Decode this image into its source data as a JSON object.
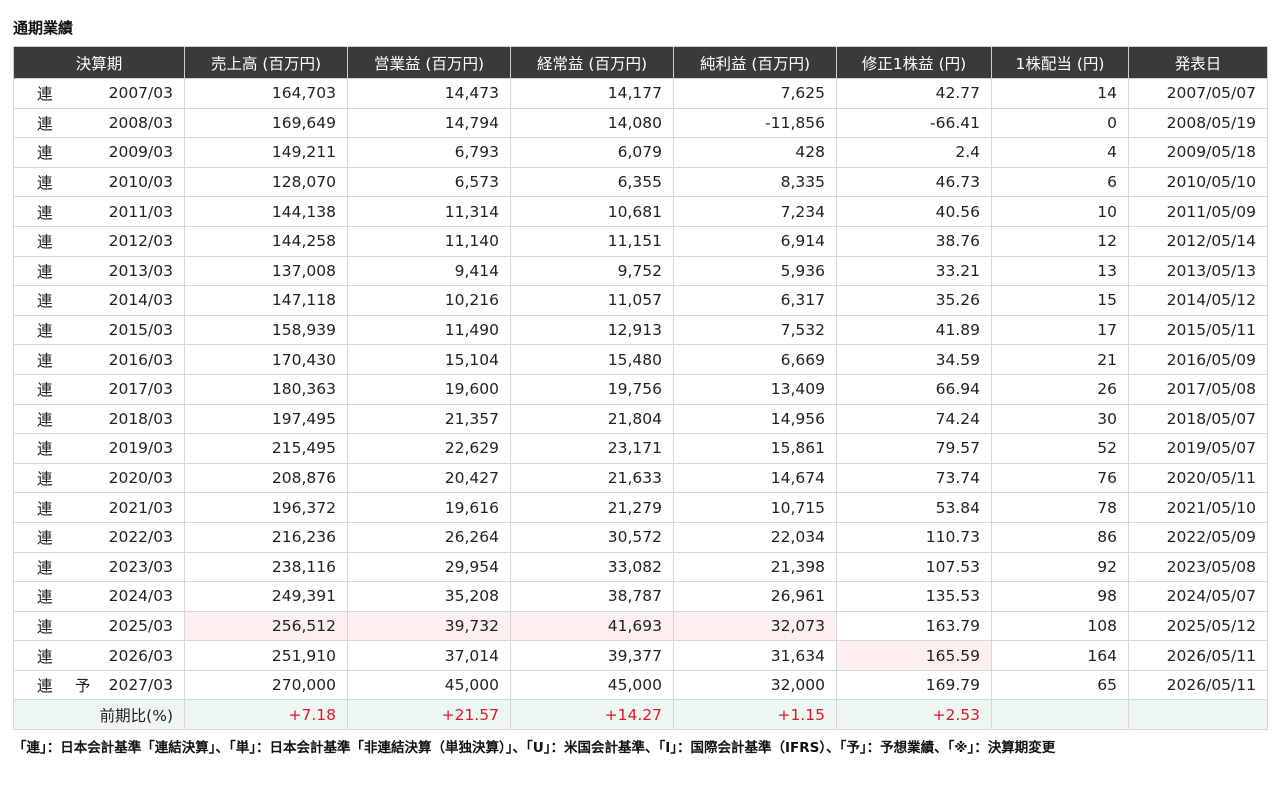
{
  "title": "通期業績",
  "headers": [
    "決算期",
    "売上高 (百万円)",
    "営業益 (百万円)",
    "経常益 (百万円)",
    "純利益 (百万円)",
    "修正1株益 (円)",
    "1株配当 (円)",
    "発表日"
  ],
  "rows": [
    {
      "kind": "連",
      "flag": "",
      "period": "2007/03",
      "sales": "164,703",
      "op": "14,473",
      "ord": "14,177",
      "net": "7,625",
      "eps": "42.77",
      "div": "14",
      "date": "2007/05/07"
    },
    {
      "kind": "連",
      "flag": "",
      "period": "2008/03",
      "sales": "169,649",
      "op": "14,794",
      "ord": "14,080",
      "net": "-11,856",
      "eps": "-66.41",
      "div": "0",
      "date": "2008/05/19"
    },
    {
      "kind": "連",
      "flag": "",
      "period": "2009/03",
      "sales": "149,211",
      "op": "6,793",
      "ord": "6,079",
      "net": "428",
      "eps": "2.4",
      "div": "4",
      "date": "2009/05/18"
    },
    {
      "kind": "連",
      "flag": "",
      "period": "2010/03",
      "sales": "128,070",
      "op": "6,573",
      "ord": "6,355",
      "net": "8,335",
      "eps": "46.73",
      "div": "6",
      "date": "2010/05/10"
    },
    {
      "kind": "連",
      "flag": "",
      "period": "2011/03",
      "sales": "144,138",
      "op": "11,314",
      "ord": "10,681",
      "net": "7,234",
      "eps": "40.56",
      "div": "10",
      "date": "2011/05/09"
    },
    {
      "kind": "連",
      "flag": "",
      "period": "2012/03",
      "sales": "144,258",
      "op": "11,140",
      "ord": "11,151",
      "net": "6,914",
      "eps": "38.76",
      "div": "12",
      "date": "2012/05/14"
    },
    {
      "kind": "連",
      "flag": "",
      "period": "2013/03",
      "sales": "137,008",
      "op": "9,414",
      "ord": "9,752",
      "net": "5,936",
      "eps": "33.21",
      "div": "13",
      "date": "2013/05/13"
    },
    {
      "kind": "連",
      "flag": "",
      "period": "2014/03",
      "sales": "147,118",
      "op": "10,216",
      "ord": "11,057",
      "net": "6,317",
      "eps": "35.26",
      "div": "15",
      "date": "2014/05/12"
    },
    {
      "kind": "連",
      "flag": "",
      "period": "2015/03",
      "sales": "158,939",
      "op": "11,490",
      "ord": "12,913",
      "net": "7,532",
      "eps": "41.89",
      "div": "17",
      "date": "2015/05/11"
    },
    {
      "kind": "連",
      "flag": "",
      "period": "2016/03",
      "sales": "170,430",
      "op": "15,104",
      "ord": "15,480",
      "net": "6,669",
      "eps": "34.59",
      "div": "21",
      "date": "2016/05/09"
    },
    {
      "kind": "連",
      "flag": "",
      "period": "2017/03",
      "sales": "180,363",
      "op": "19,600",
      "ord": "19,756",
      "net": "13,409",
      "eps": "66.94",
      "div": "26",
      "date": "2017/05/08"
    },
    {
      "kind": "連",
      "flag": "",
      "period": "2018/03",
      "sales": "197,495",
      "op": "21,357",
      "ord": "21,804",
      "net": "14,956",
      "eps": "74.24",
      "div": "30",
      "date": "2018/05/07"
    },
    {
      "kind": "連",
      "flag": "",
      "period": "2019/03",
      "sales": "215,495",
      "op": "22,629",
      "ord": "23,171",
      "net": "15,861",
      "eps": "79.57",
      "div": "52",
      "date": "2019/05/07"
    },
    {
      "kind": "連",
      "flag": "",
      "period": "2020/03",
      "sales": "208,876",
      "op": "20,427",
      "ord": "21,633",
      "net": "14,674",
      "eps": "73.74",
      "div": "76",
      "date": "2020/05/11"
    },
    {
      "kind": "連",
      "flag": "",
      "period": "2021/03",
      "sales": "196,372",
      "op": "19,616",
      "ord": "21,279",
      "net": "10,715",
      "eps": "53.84",
      "div": "78",
      "date": "2021/05/10"
    },
    {
      "kind": "連",
      "flag": "",
      "period": "2022/03",
      "sales": "216,236",
      "op": "26,264",
      "ord": "30,572",
      "net": "22,034",
      "eps": "110.73",
      "div": "86",
      "date": "2022/05/09"
    },
    {
      "kind": "連",
      "flag": "",
      "period": "2023/03",
      "sales": "238,116",
      "op": "29,954",
      "ord": "33,082",
      "net": "21,398",
      "eps": "107.53",
      "div": "92",
      "date": "2023/05/08"
    },
    {
      "kind": "連",
      "flag": "",
      "period": "2024/03",
      "sales": "249,391",
      "op": "35,208",
      "ord": "38,787",
      "net": "26,961",
      "eps": "135.53",
      "div": "98",
      "date": "2024/05/07"
    },
    {
      "kind": "連",
      "flag": "",
      "period": "2025/03",
      "sales": "256,512",
      "op": "39,732",
      "ord": "41,693",
      "net": "32,073",
      "eps": "163.79",
      "div": "108",
      "date": "2025/05/12",
      "highlight": [
        "sales",
        "op",
        "ord",
        "net"
      ]
    },
    {
      "kind": "連",
      "flag": "",
      "period": "2026/03",
      "sales": "251,910",
      "op": "37,014",
      "ord": "39,377",
      "net": "31,634",
      "eps": "165.59",
      "div": "164",
      "date": "2026/05/11",
      "highlight": [
        "eps"
      ]
    },
    {
      "kind": "連",
      "flag": "予",
      "period": "2027/03",
      "sales": "270,000",
      "op": "45,000",
      "ord": "45,000",
      "net": "32,000",
      "eps": "169.79",
      "div": "65",
      "date": "2026/05/11"
    }
  ],
  "ratio": {
    "label": "前期比(%)",
    "sales": "+7.18",
    "op": "+21.57",
    "ord": "+14.27",
    "net": "+1.15",
    "eps": "+2.53",
    "div": "",
    "date": ""
  },
  "note": "「連」：日本会計基準「連結決算」、「単」：日本会計基準「非連結決算（単独決算）」、「U」：米国会計基準、「I」：国際会計基準（IFRS）、「予」：予想業績、「※」：決算期変更",
  "colors": {
    "header_bg": "#3a3a3a",
    "highlight_bg": "#fdeff0",
    "ratio_bg": "#eef6f1",
    "positive": "#e0182d"
  }
}
